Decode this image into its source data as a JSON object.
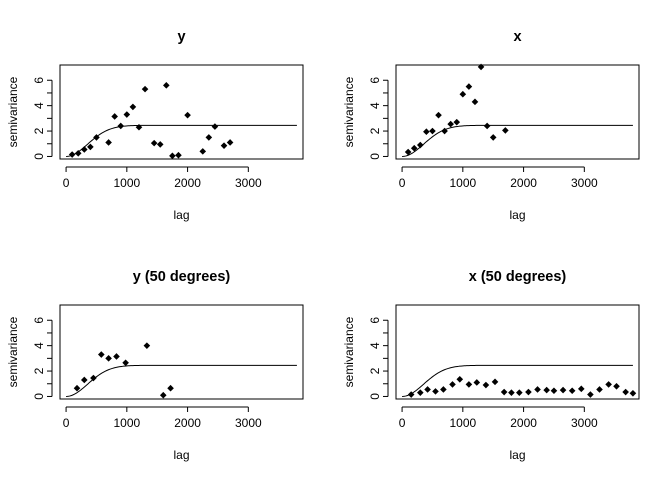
{
  "chart_data": [
    {
      "type": "scatter",
      "title": "y",
      "xlabel": "lag",
      "ylabel": "semivariance",
      "xlim": [
        -100,
        3900
      ],
      "ylim": [
        -0.2,
        7.2
      ],
      "xticks": [
        0,
        1000,
        2000,
        3000
      ],
      "yticks": [
        0,
        2,
        4,
        6
      ],
      "grid": false,
      "model_curve": {
        "type": "line",
        "nugget": 0,
        "sill": 2.45,
        "range": 900,
        "x_max": 3800
      },
      "points": {
        "x": [
          100,
          200,
          300,
          400,
          500,
          700,
          800,
          900,
          1000,
          1100,
          1200,
          1300,
          1450,
          1550,
          1650,
          1750,
          1850,
          2000,
          2250,
          2350,
          2450,
          2600,
          2700
        ],
        "y": [
          0.15,
          0.25,
          0.55,
          0.75,
          1.5,
          1.1,
          3.15,
          2.4,
          3.3,
          3.9,
          2.3,
          5.3,
          1.05,
          0.95,
          5.6,
          0.05,
          0.1,
          3.25,
          0.4,
          1.5,
          2.35,
          0.85,
          1.1
        ]
      }
    },
    {
      "type": "scatter",
      "title": "x",
      "xlabel": "lag",
      "ylabel": "semivariance",
      "xlim": [
        -100,
        3900
      ],
      "ylim": [
        -0.2,
        7.2
      ],
      "xticks": [
        0,
        1000,
        2000,
        3000
      ],
      "yticks": [
        0,
        2,
        4,
        6
      ],
      "grid": false,
      "model_curve": {
        "type": "line",
        "nugget": 0,
        "sill": 2.45,
        "range": 900,
        "x_max": 3800
      },
      "points": {
        "x": [
          100,
          200,
          300,
          400,
          500,
          600,
          700,
          800,
          900,
          1000,
          1100,
          1200,
          1300,
          1400,
          1500,
          1700
        ],
        "y": [
          0.35,
          0.65,
          0.9,
          1.95,
          2.0,
          3.25,
          2.0,
          2.55,
          2.7,
          4.9,
          5.5,
          4.3,
          7.05,
          2.4,
          1.5,
          2.05
        ]
      }
    },
    {
      "type": "scatter",
      "title": "y (50 degrees)",
      "xlabel": "lag",
      "ylabel": "semivariance",
      "xlim": [
        -100,
        3900
      ],
      "ylim": [
        -0.2,
        7.2
      ],
      "xticks": [
        0,
        1000,
        2000,
        3000
      ],
      "yticks": [
        0,
        2,
        4,
        6
      ],
      "grid": false,
      "model_curve": {
        "type": "line",
        "nugget": 0,
        "sill": 2.45,
        "range": 900,
        "x_max": 3800
      },
      "points": {
        "x": [
          180,
          300,
          450,
          580,
          700,
          830,
          980,
          1330,
          1600,
          1720
        ],
        "y": [
          0.65,
          1.3,
          1.45,
          3.3,
          3.0,
          3.15,
          2.65,
          4.0,
          0.1,
          0.65
        ]
      }
    },
    {
      "type": "scatter",
      "title": "x (50 degrees)",
      "xlabel": "lag",
      "ylabel": "semivariance",
      "xlim": [
        -100,
        3900
      ],
      "ylim": [
        -0.2,
        7.2
      ],
      "xticks": [
        0,
        1000,
        2000,
        3000
      ],
      "yticks": [
        0,
        2,
        4,
        6
      ],
      "grid": false,
      "model_curve": {
        "type": "line",
        "nugget": 0,
        "sill": 2.45,
        "range": 900,
        "x_max": 3800
      },
      "points": {
        "x": [
          150,
          300,
          420,
          550,
          680,
          830,
          950,
          1100,
          1230,
          1380,
          1530,
          1680,
          1800,
          1930,
          2080,
          2230,
          2380,
          2500,
          2650,
          2800,
          2950,
          3100,
          3250,
          3400,
          3530,
          3680,
          3800
        ],
        "y": [
          0.15,
          0.3,
          0.55,
          0.4,
          0.55,
          0.95,
          1.35,
          0.95,
          1.1,
          0.9,
          1.15,
          0.35,
          0.3,
          0.3,
          0.35,
          0.55,
          0.5,
          0.45,
          0.5,
          0.45,
          0.6,
          0.15,
          0.55,
          0.95,
          0.8,
          0.35,
          0.25
        ]
      }
    }
  ]
}
